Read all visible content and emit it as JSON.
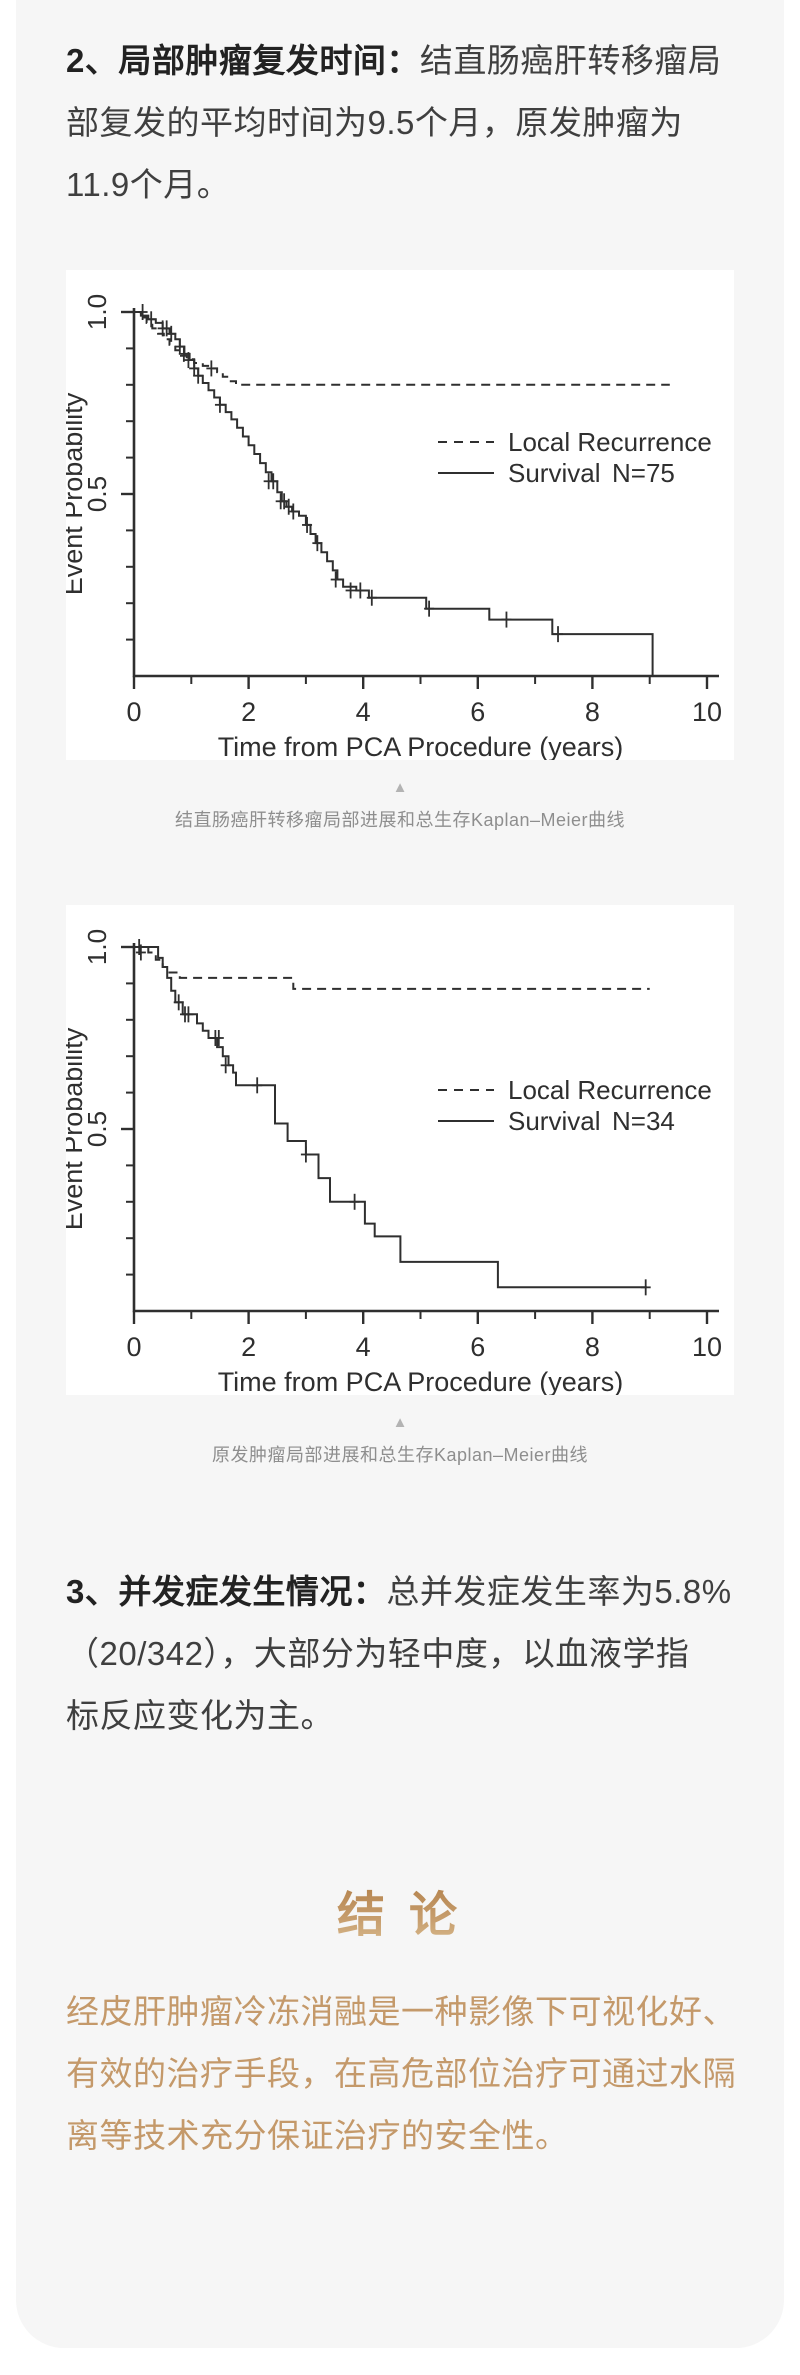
{
  "colors": {
    "page_bg": "#ffffff",
    "card_bg": "#f6f6f6",
    "ink": "#3f3f3f",
    "ink_bold": "#222222",
    "caption_gray": "#8e8e8e",
    "arrow_gray": "#b3b3b3",
    "gold": "#c4996a",
    "gold_gradient_top": "#b2804a",
    "gold_gradient_bottom": "#dcc094",
    "chart_line": "#2f2f2f"
  },
  "content": {
    "para2": {
      "bold": "2、局部肿瘤复发时间：",
      "line1_rest": "结直肠癌肝转移瘤局",
      "line2": "部复发的平均时间为9.5个月，原发肿瘤为",
      "line3": "11.9个月。"
    },
    "captions": [
      {
        "arrow": "▲",
        "text": "结直肠癌肝转移瘤局部进展和总生存Kaplan–Meier曲线"
      },
      {
        "arrow": "▲",
        "text": "原发肿瘤局部进展和总生存Kaplan–Meier曲线"
      }
    ],
    "para3": {
      "bold": "3、并发症发生情况：",
      "line1_rest": "总并发症发生率为5.8%",
      "line2": "（20/342），大部分为轻中度，以血液学指",
      "line3": "标反应变化为主。"
    },
    "conclusion": {
      "title": "结 论",
      "lines": [
        "经皮肝肿瘤冷冻消融是一种影像下可视化好、",
        "有效的治疗手段，在高危部位治疗可通过水隔",
        "离等技术充分保证治疗的安全性。"
      ]
    }
  },
  "chart_data": [
    {
      "type": "line",
      "title": "结直肠癌肝转移瘤局部进展和总生存Kaplan–Meier曲线",
      "xlabel": "Time from PCA Procedure (years)",
      "ylabel": "Event Probability",
      "xlim": [
        0,
        10
      ],
      "ylim": [
        0,
        1.0
      ],
      "x_ticks": {
        "major": [
          0,
          2,
          4,
          6,
          8,
          10
        ],
        "minor": [
          1,
          3,
          5,
          7,
          9
        ]
      },
      "y_ticks": {
        "labeled": [
          {
            "v": 1.0,
            "t": "1.0"
          },
          {
            "v": 0.5,
            "t": "0.5"
          }
        ],
        "minor": [
          0.9,
          0.8,
          0.7,
          0.6,
          0.4,
          0.3,
          0.2,
          0.1
        ]
      },
      "legend": {
        "y": 172,
        "rows": [
          {
            "style": "dashed",
            "label": "Local Recurrence",
            "extra": ""
          },
          {
            "style": "solid",
            "label": "Survival",
            "extra": "N=75"
          }
        ]
      },
      "series": [
        {
          "name": "Local Recurrence",
          "style": "dashed",
          "points": [
            [
              0,
              1
            ],
            [
              0.12,
              0.985
            ],
            [
              0.22,
              0.97
            ],
            [
              0.32,
              0.955
            ],
            [
              0.42,
              0.94
            ],
            [
              0.52,
              0.925
            ],
            [
              0.62,
              0.91
            ],
            [
              0.72,
              0.895
            ],
            [
              0.82,
              0.88
            ],
            [
              0.92,
              0.87
            ],
            [
              1.05,
              0.86
            ],
            [
              1.2,
              0.852
            ],
            [
              1.35,
              0.845
            ],
            [
              1.45,
              0.835
            ],
            [
              1.55,
              0.822
            ],
            [
              1.65,
              0.81
            ],
            [
              1.78,
              0.8
            ],
            [
              9.35,
              0.8
            ]
          ],
          "censors": [
            [
              1.35,
              0.845
            ]
          ]
        },
        {
          "name": "Survival",
          "style": "solid",
          "points": [
            [
              0,
              1
            ],
            [
              0.12,
              0.99
            ],
            [
              0.25,
              0.98
            ],
            [
              0.38,
              0.97
            ],
            [
              0.5,
              0.955
            ],
            [
              0.62,
              0.94
            ],
            [
              0.72,
              0.925
            ],
            [
              0.8,
              0.905
            ],
            [
              0.88,
              0.885
            ],
            [
              0.97,
              0.868
            ],
            [
              1.05,
              0.845
            ],
            [
              1.12,
              0.825
            ],
            [
              1.2,
              0.805
            ],
            [
              1.3,
              0.785
            ],
            [
              1.4,
              0.765
            ],
            [
              1.5,
              0.745
            ],
            [
              1.6,
              0.725
            ],
            [
              1.7,
              0.705
            ],
            [
              1.8,
              0.682
            ],
            [
              1.9,
              0.658
            ],
            [
              2.0,
              0.634
            ],
            [
              2.1,
              0.61
            ],
            [
              2.2,
              0.585
            ],
            [
              2.3,
              0.56
            ],
            [
              2.4,
              0.535
            ],
            [
              2.5,
              0.505
            ],
            [
              2.58,
              0.48
            ],
            [
              2.66,
              0.465
            ],
            [
              2.76,
              0.452
            ],
            [
              2.88,
              0.44
            ],
            [
              3.0,
              0.415
            ],
            [
              3.08,
              0.39
            ],
            [
              3.17,
              0.365
            ],
            [
              3.27,
              0.34
            ],
            [
              3.37,
              0.315
            ],
            [
              3.47,
              0.29
            ],
            [
              3.55,
              0.265
            ],
            [
              3.65,
              0.245
            ],
            [
              3.88,
              0.235
            ],
            [
              4.1,
              0.215
            ],
            [
              5.1,
              0.185
            ],
            [
              6.2,
              0.155
            ],
            [
              7.3,
              0.115
            ],
            [
              9.05,
              0.115
            ],
            [
              9.05,
              0
            ]
          ],
          "censors": [
            [
              0.15,
              1
            ],
            [
              0.3,
              0.98
            ],
            [
              0.5,
              0.955
            ],
            [
              0.57,
              0.955
            ],
            [
              0.65,
              0.94
            ],
            [
              0.8,
              0.905
            ],
            [
              0.87,
              0.885
            ],
            [
              0.95,
              0.868
            ],
            [
              1.05,
              0.845
            ],
            [
              1.12,
              0.825
            ],
            [
              1.5,
              0.745
            ],
            [
              2.35,
              0.535
            ],
            [
              2.43,
              0.535
            ],
            [
              2.56,
              0.48
            ],
            [
              2.62,
              0.48
            ],
            [
              2.7,
              0.465
            ],
            [
              2.78,
              0.452
            ],
            [
              3.02,
              0.415
            ],
            [
              3.2,
              0.365
            ],
            [
              3.52,
              0.265
            ],
            [
              3.78,
              0.235
            ],
            [
              3.95,
              0.235
            ],
            [
              4.15,
              0.215
            ],
            [
              5.15,
              0.185
            ],
            [
              6.5,
              0.155
            ],
            [
              7.4,
              0.115
            ]
          ]
        }
      ]
    },
    {
      "type": "line",
      "title": "原发肿瘤局部进展和总生存Kaplan–Meier曲线",
      "xlabel": "Time from PCA Procedure (years)",
      "ylabel": "Event Probability",
      "xlim": [
        0,
        10
      ],
      "ylim": [
        0,
        1.0
      ],
      "x_ticks": {
        "major": [
          0,
          2,
          4,
          6,
          8,
          10
        ],
        "minor": [
          1,
          3,
          5,
          7,
          9
        ]
      },
      "y_ticks": {
        "labeled": [
          {
            "v": 1.0,
            "t": "1.0"
          },
          {
            "v": 0.5,
            "t": "0.5"
          }
        ],
        "minor": [
          0.9,
          0.8,
          0.7,
          0.6,
          0.4,
          0.3,
          0.2,
          0.1
        ]
      },
      "legend": {
        "y": 185,
        "rows": [
          {
            "style": "dashed",
            "label": "Local Recurrence",
            "extra": ""
          },
          {
            "style": "solid",
            "label": "Survival",
            "extra": "N=34"
          }
        ]
      },
      "series": [
        {
          "name": "Local Recurrence",
          "style": "dashed",
          "points": [
            [
              0,
              1
            ],
            [
              0.25,
              0.985
            ],
            [
              0.38,
              0.965
            ],
            [
              0.5,
              0.945
            ],
            [
              0.62,
              0.93
            ],
            [
              0.8,
              0.915
            ],
            [
              2.68,
              0.915
            ],
            [
              2.78,
              0.885
            ],
            [
              9.0,
              0.885
            ]
          ],
          "censors": [
            [
              0.12,
              0.985
            ]
          ]
        },
        {
          "name": "Survival",
          "style": "solid",
          "points": [
            [
              0,
              1
            ],
            [
              0.42,
              0.97
            ],
            [
              0.5,
              0.945
            ],
            [
              0.58,
              0.915
            ],
            [
              0.65,
              0.88
            ],
            [
              0.72,
              0.848
            ],
            [
              0.85,
              0.815
            ],
            [
              1.1,
              0.79
            ],
            [
              1.2,
              0.77
            ],
            [
              1.3,
              0.75
            ],
            [
              1.45,
              0.725
            ],
            [
              1.55,
              0.7
            ],
            [
              1.65,
              0.675
            ],
            [
              1.73,
              0.655
            ],
            [
              1.78,
              0.62
            ],
            [
              2.46,
              0.515
            ],
            [
              2.68,
              0.467
            ],
            [
              3.0,
              0.43
            ],
            [
              3.22,
              0.365
            ],
            [
              3.42,
              0.3
            ],
            [
              4.03,
              0.24
            ],
            [
              4.2,
              0.205
            ],
            [
              4.65,
              0.135
            ],
            [
              6.35,
              0.065
            ],
            [
              8.95,
              0.065
            ]
          ],
          "censors": [
            [
              0.09,
              1
            ],
            [
              0.78,
              0.848
            ],
            [
              0.89,
              0.815
            ],
            [
              0.95,
              0.815
            ],
            [
              1.42,
              0.75
            ],
            [
              1.48,
              0.75
            ],
            [
              1.6,
              0.675
            ],
            [
              2.15,
              0.62
            ],
            [
              3.0,
              0.43
            ],
            [
              3.85,
              0.3
            ],
            [
              8.93,
              0.065
            ]
          ]
        }
      ]
    }
  ]
}
